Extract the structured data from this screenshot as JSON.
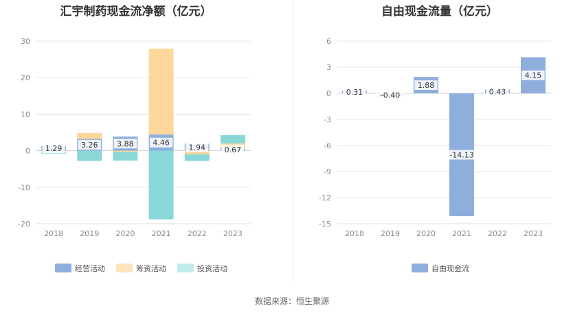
{
  "source_text": "数据来源：恒生聚源",
  "chart_data": [
    {
      "type": "bar",
      "stacked": true,
      "title": "汇宇制药现金流净额（亿元）",
      "categories": [
        "2018",
        "2019",
        "2020",
        "2021",
        "2022",
        "2023"
      ],
      "ylim": [
        -20,
        30
      ],
      "yticks": [
        30,
        20,
        10,
        0,
        -10,
        -20
      ],
      "grid": true,
      "legend_position": "bottom",
      "series": [
        {
          "name": "经营活动",
          "color": "#8eaedc",
          "values": [
            1.29,
            3.26,
            3.88,
            4.46,
            1.94,
            0.67
          ],
          "labels": [
            "1.29",
            "3.26",
            "3.88",
            "4.46",
            "1.94",
            "0.67"
          ]
        },
        {
          "name": "筹资活动",
          "color": "#fdd89a",
          "values": [
            -0.2,
            1.6,
            -0.3,
            23.5,
            -1.0,
            1.3
          ]
        },
        {
          "name": "投资活动",
          "color": "#8ad7d8",
          "values": [
            -0.6,
            -2.8,
            -2.4,
            -18.8,
            -1.8,
            2.3
          ]
        }
      ],
      "legend_labels": [
        "经营活动",
        "筹资活动",
        "投资活动"
      ],
      "legend_colors": [
        "#8eaedc",
        "#fde4bd",
        "#c0ebec"
      ]
    },
    {
      "type": "bar",
      "title": "自由现金流量（亿元）",
      "categories": [
        "2018",
        "2019",
        "2020",
        "2021",
        "2022",
        "2023"
      ],
      "ylim": [
        -15,
        6
      ],
      "yticks": [
        6,
        3,
        0,
        -3,
        -6,
        -9,
        -12,
        -15
      ],
      "grid": true,
      "legend_position": "bottom",
      "series": [
        {
          "name": "自由现金流",
          "color": "#8eaedc",
          "values": [
            0.31,
            -0.4,
            1.88,
            -14.13,
            0.43,
            4.15
          ],
          "labels": [
            "0.31",
            "-0.40",
            "1.88",
            "-14.13",
            "0.43",
            "4.15"
          ]
        }
      ],
      "legend_labels": [
        "自由现金流"
      ],
      "legend_colors": [
        "#8eaedc"
      ]
    }
  ]
}
